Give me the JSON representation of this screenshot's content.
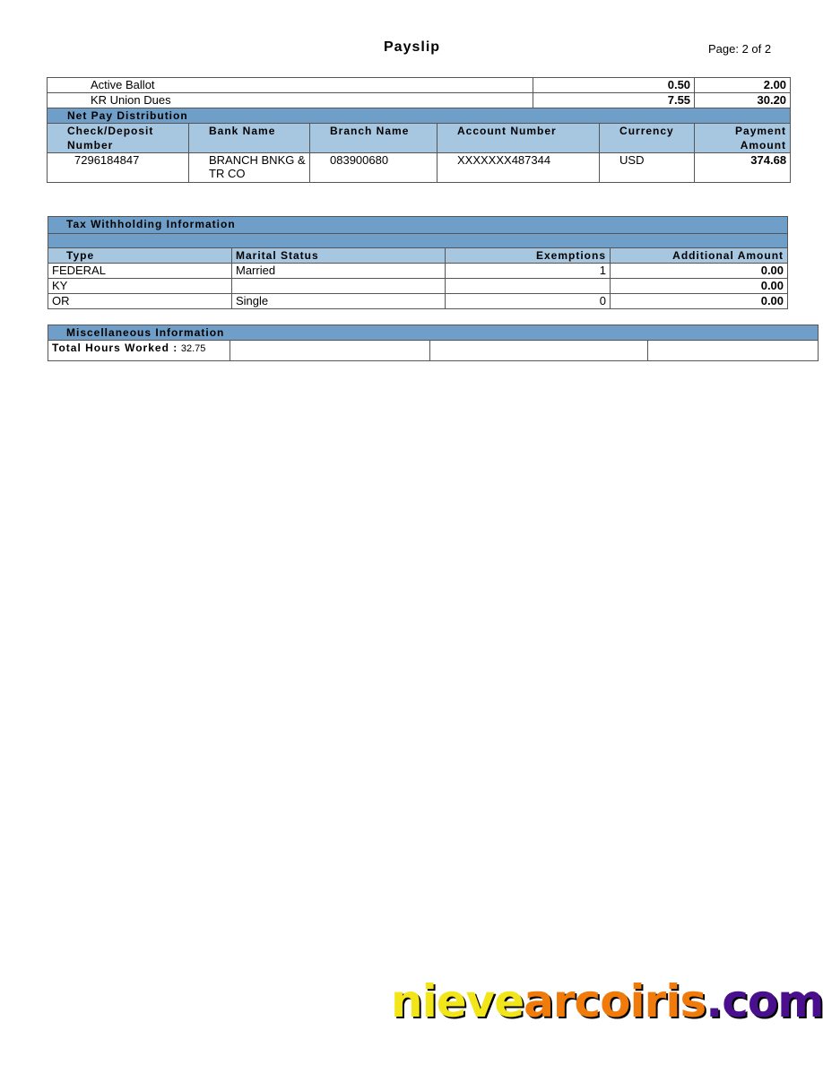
{
  "header": {
    "title": "Payslip",
    "page": "Page: 2 of 2"
  },
  "deductions": [
    {
      "label": "Active Ballot",
      "current": "0.50",
      "ytd": "2.00"
    },
    {
      "label": "KR Union Dues",
      "current": "7.55",
      "ytd": "30.20"
    }
  ],
  "net_pay": {
    "title": "Net Pay Distribution",
    "columns": [
      "Check/Deposit Number",
      "Bank Name",
      "Branch Name",
      "Account Number",
      "Currency",
      "Payment Amount"
    ],
    "rows": [
      [
        "7296184847",
        "BRANCH BNKG & TR CO",
        "083900680",
        "XXXXXXX487344",
        "USD",
        "374.68"
      ]
    ]
  },
  "tax": {
    "title": "Tax Withholding Information",
    "columns": [
      "Type",
      "Marital Status",
      "Exemptions",
      "Additional Amount"
    ],
    "rows": [
      [
        "FEDERAL",
        "Married",
        "1",
        "0.00"
      ],
      [
        "KY",
        "",
        "",
        "0.00"
      ],
      [
        "OR",
        "Single",
        "0",
        "0.00"
      ]
    ]
  },
  "misc": {
    "title": "Miscellaneous Information",
    "hours_label": "Total Hours Worked :",
    "hours_value": "32.75"
  },
  "logo": {
    "part1": "nieve",
    "part2": "arcoiris",
    "part3": ".com",
    "colors": [
      "#f2e619",
      "#f07a0a",
      "#4a0f8c"
    ]
  }
}
